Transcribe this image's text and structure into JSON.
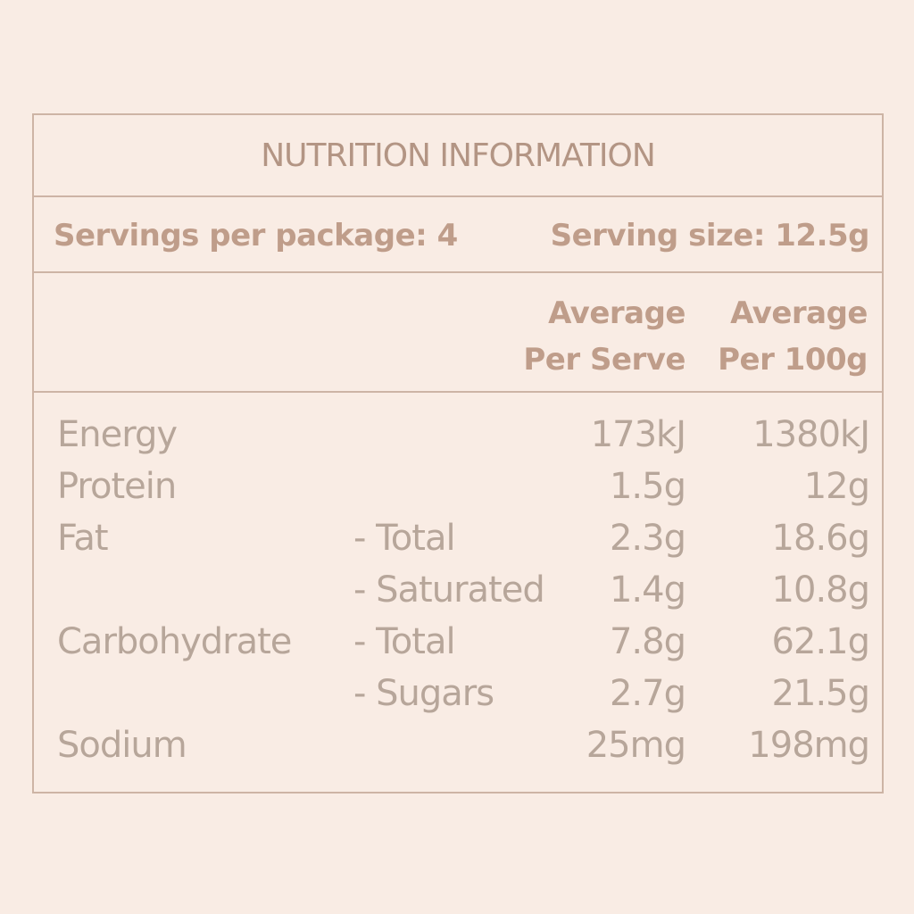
{
  "title": "NUTRITION INFORMATION",
  "servings_per_package": "Servings per package: 4",
  "serving_size": "Serving size: 12.5g",
  "columns": {
    "per_serve": [
      "Average",
      "Per Serve"
    ],
    "per_100g": [
      "Average",
      "Per 100g"
    ]
  },
  "rows": [
    {
      "nutrient": "Energy",
      "sub": "",
      "per_serve": "173kJ",
      "per_100g": "1380kJ"
    },
    {
      "nutrient": "Protein",
      "sub": "",
      "per_serve": "1.5g",
      "per_100g": "12g"
    },
    {
      "nutrient": "Fat",
      "sub": "- Total",
      "per_serve": "2.3g",
      "per_100g": "18.6g"
    },
    {
      "nutrient": "",
      "sub": "- Saturated",
      "per_serve": "1.4g",
      "per_100g": "10.8g"
    },
    {
      "nutrient": "Carbohydrate",
      "sub": "- Total",
      "per_serve": "7.8g",
      "per_100g": "62.1g"
    },
    {
      "nutrient": "",
      "sub": "- Sugars",
      "per_serve": "2.7g",
      "per_100g": "21.5g"
    },
    {
      "nutrient": "Sodium",
      "sub": "",
      "per_serve": "25mg",
      "per_100g": "198mg"
    }
  ]
}
